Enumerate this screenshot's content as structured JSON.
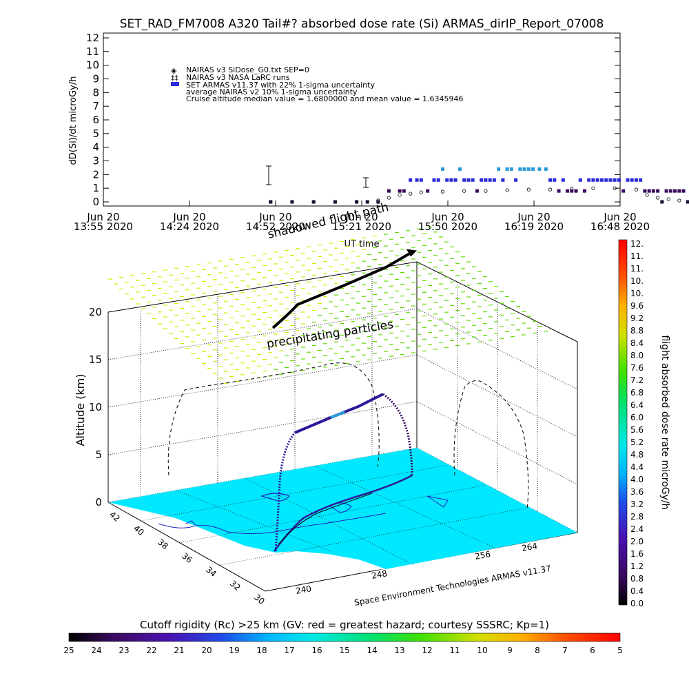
{
  "chart_data": [
    {
      "type": "scatter",
      "title": "SET_RAD_FM7008  A320 Tail#? absorbed dose rate (Si) ARMAS_dirIP_Report_07008",
      "ylabel": "dD(Si)/dt microGy/h",
      "xlabel": "UT time",
      "ylim": [
        0,
        12
      ],
      "yticks": [
        "0",
        "1",
        "2",
        "3",
        "4",
        "5",
        "6",
        "7",
        "8",
        "9",
        "10",
        "11",
        "12"
      ],
      "xlim": [
        "13:55",
        "16:48"
      ],
      "xticks": [
        {
          "top": "Jun 20",
          "bottom": "13:55 2020"
        },
        {
          "top": "Jun 20",
          "bottom": "14:24 2020"
        },
        {
          "top": "Jun 20",
          "bottom": "14:52 2020"
        },
        {
          "top": "Jun 20",
          "bottom": "15:21 2020"
        },
        {
          "top": "Jun 20",
          "bottom": "15:50 2020"
        },
        {
          "top": "Jun 20",
          "bottom": "16:19 2020"
        },
        {
          "top": "Jun 20",
          "bottom": "16:48 2020"
        }
      ],
      "legend": [
        "NAIRAS v3 SiDose_G0.txt SEP=0",
        "NAIRAS v3 NASA LaRC runs",
        "SET ARMAS v11.37 with 22% 1-sigma uncertainty",
        "average NAIRAS v2 10% 1-sigma uncertainty",
        "Cruise altitude median value = 1.6800000 and mean value = 1.6345946"
      ],
      "series": [
        {
          "name": "SET ARMAS v11.37 with 22% 1-sigma uncertainty",
          "x_minutes": [
            0,
            10,
            20,
            30,
            40,
            45,
            50,
            55,
            60,
            62,
            65,
            68,
            70,
            73,
            76,
            78,
            80,
            82,
            84,
            86,
            88,
            90,
            92,
            94,
            96,
            98,
            100,
            102,
            104,
            106,
            108,
            110,
            112,
            114,
            116,
            118,
            120,
            122,
            125,
            128,
            130,
            132,
            134,
            136,
            138,
            140,
            142,
            144,
            146,
            148,
            150,
            152,
            154,
            156,
            158,
            160,
            162,
            164,
            166,
            168,
            170,
            172,
            174,
            176,
            178,
            180,
            182,
            184,
            186,
            188,
            190,
            192,
            194,
            196,
            198,
            200,
            202,
            204,
            206,
            208,
            210
          ],
          "values": [
            0,
            0,
            0,
            0,
            0,
            0,
            0,
            0.8,
            0.8,
            0.8,
            1.6,
            1.6,
            1.6,
            0.8,
            1.6,
            1.6,
            2.4,
            1.6,
            1.6,
            1.6,
            2.4,
            1.6,
            1.6,
            1.6,
            0.8,
            1.6,
            1.6,
            1.6,
            1.6,
            2.4,
            1.6,
            2.4,
            2.4,
            1.6,
            2.4,
            2.4,
            2.4,
            2.4,
            2.4,
            2.4,
            1.6,
            1.6,
            0.8,
            1.6,
            0.8,
            0.8,
            0.8,
            1.6,
            0.8,
            1.6,
            1.6,
            1.6,
            1.6,
            1.6,
            1.6,
            1.6,
            1.6,
            0.8,
            1.6,
            1.6,
            1.6,
            1.6,
            0.8,
            0.8,
            0.8,
            0.8,
            0,
            0.8,
            0.8,
            0.8,
            0.8,
            0.8,
            0,
            0,
            0,
            0,
            0,
            0,
            0,
            0,
            0
          ]
        },
        {
          "name": "NAIRAS v3 SiDose_G0.txt SEP=0",
          "x_minutes": [
            0,
            10,
            20,
            30,
            40,
            50,
            55,
            60,
            65,
            70,
            80,
            90,
            100,
            110,
            120,
            130,
            140,
            150,
            160,
            170,
            175,
            180,
            185,
            190,
            200,
            210
          ],
          "values": [
            0,
            0,
            0,
            0,
            0,
            0.1,
            0.3,
            0.5,
            0.6,
            0.7,
            0.75,
            0.8,
            0.8,
            0.85,
            0.9,
            0.9,
            0.95,
            1.0,
            1.0,
            0.9,
            0.5,
            0.3,
            0.2,
            0.1,
            0,
            0
          ]
        }
      ]
    },
    {
      "type": "3d-flight-track",
      "zlabel": "Altitude (km)",
      "zticks": [
        "0",
        "5",
        "10",
        "15",
        "20"
      ],
      "lat_ticks": [
        "42",
        "40",
        "38",
        "36",
        "34",
        "32",
        "30"
      ],
      "lon_ticks": [
        "240",
        "248",
        "256",
        "264"
      ],
      "annotations": [
        "shadowed flight path",
        "precipitating particles",
        "Space Environment Technologies ARMAS v11.37"
      ],
      "colorbar_label": "flight absorbed dose rate microGy/h",
      "colorbar_ticks": [
        "0.0",
        "0.4",
        "0.8",
        "1.2",
        "1.6",
        "2.0",
        "2.4",
        "2.8",
        "3.2",
        "3.6",
        "4.0",
        "4.4",
        "4.8",
        "5.2",
        "5.6",
        "6.0",
        "6.4",
        "6.8",
        "7.2",
        "7.6",
        "8.0",
        "8.4",
        "8.8",
        "9.2",
        "9.6",
        "10.",
        "10.",
        "11.",
        "11.",
        "12."
      ]
    },
    {
      "type": "colorbar",
      "title": "Cutoff rigidity (Rc) >25 km (GV: red = greatest hazard; courtesy SSSRC; Kp=1)",
      "ticks": [
        "25",
        "24",
        "23",
        "22",
        "21",
        "20",
        "19",
        "18",
        "17",
        "16",
        "15",
        "14",
        "13",
        "12",
        "11",
        "10",
        "9",
        "8",
        "7",
        "6",
        "5"
      ]
    }
  ],
  "colors": {
    "armas_dark": "#2c1a9a",
    "armas_light": "#2a9ad8",
    "nairas": "#000000",
    "ground": "#00e8ff",
    "coast": "#2020c0"
  }
}
